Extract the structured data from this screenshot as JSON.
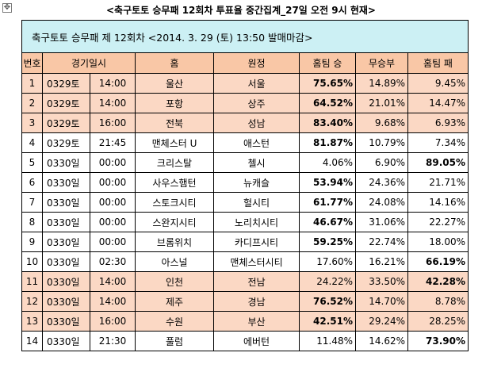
{
  "title": "<축구토토 승무패 12회차 투표율 중간집계_27일 오전 9시 현재>",
  "caption": "축구토토 승무패 제 12회차 <2014. 3. 29 (토) 13:50 발매마감>",
  "headers": [
    "번호",
    "경기일시",
    "홈",
    "원정",
    "홈팀 승",
    "무승부",
    "홈팀 패"
  ],
  "rows": [
    {
      "no": "1",
      "date": "0329토",
      "time": "14:00",
      "home": "울산",
      "away": "서울",
      "win": "75.65%",
      "draw": "14.89%",
      "lose": "9.45%"
    },
    {
      "no": "2",
      "date": "0329토",
      "time": "14:00",
      "home": "포항",
      "away": "상주",
      "win": "64.52%",
      "draw": "21.01%",
      "lose": "14.47%"
    },
    {
      "no": "3",
      "date": "0329토",
      "time": "16:00",
      "home": "전북",
      "away": "성남",
      "win": "83.40%",
      "draw": "9.68%",
      "lose": "6.93%"
    },
    {
      "no": "4",
      "date": "0329토",
      "time": "21:45",
      "home": "맨체스터 U",
      "away": "애스턴",
      "win": "81.87%",
      "draw": "10.79%",
      "lose": "7.34%"
    },
    {
      "no": "5",
      "date": "0330일",
      "time": "00:00",
      "home": "크리스탈",
      "away": "첼시",
      "win": "4.06%",
      "draw": "6.90%",
      "lose": "89.05%"
    },
    {
      "no": "6",
      "date": "0330일",
      "time": "00:00",
      "home": "사우스햄턴",
      "away": "뉴캐슬",
      "win": "53.94%",
      "draw": "24.36%",
      "lose": "21.71%"
    },
    {
      "no": "7",
      "date": "0330일",
      "time": "00:00",
      "home": "스토크시티",
      "away": "헐시티",
      "win": "61.77%",
      "draw": "24.08%",
      "lose": "14.16%"
    },
    {
      "no": "8",
      "date": "0330일",
      "time": "00:00",
      "home": "스완지시티",
      "away": "노리치시티",
      "win": "46.67%",
      "draw": "31.06%",
      "lose": "22.27%"
    },
    {
      "no": "9",
      "date": "0330일",
      "time": "00:00",
      "home": "브롬위치",
      "away": "카디프시티",
      "win": "59.25%",
      "draw": "22.74%",
      "lose": "18.00%"
    },
    {
      "no": "10",
      "date": "0330일",
      "time": "02:30",
      "home": "아스널",
      "away": "맨체스터시티",
      "win": "17.60%",
      "draw": "16.21%",
      "lose": "66.19%"
    },
    {
      "no": "11",
      "date": "0330일",
      "time": "14:00",
      "home": "인천",
      "away": "전남",
      "win": "24.22%",
      "draw": "33.50%",
      "lose": "42.28%"
    },
    {
      "no": "12",
      "date": "0330일",
      "time": "14:00",
      "home": "제주",
      "away": "경남",
      "win": "76.52%",
      "draw": "14.70%",
      "lose": "8.78%"
    },
    {
      "no": "13",
      "date": "0330일",
      "time": "16:00",
      "home": "수원",
      "away": "부산",
      "win": "42.51%",
      "draw": "29.24%",
      "lose": "28.25%"
    },
    {
      "no": "14",
      "date": "0330일",
      "time": "21:30",
      "home": "풀럼",
      "away": "에버턴",
      "win": "11.48%",
      "draw": "14.62%",
      "lose": "73.90%"
    }
  ],
  "highlight_rows": [
    0,
    1,
    2,
    10,
    11,
    12
  ],
  "bold_cells": {
    "0": "win",
    "1": "win",
    "2": "win",
    "3": "win",
    "4": "lose",
    "5": "win",
    "6": "win",
    "7": "win",
    "8": "win",
    "9": "lose",
    "10": "lose",
    "11": "win",
    "12": "win",
    "13": "lose"
  },
  "colors": {
    "caption_bg": "#ccf0f4",
    "header_bg": "#f9c7a6",
    "highlight_bg": "#fbd8c4"
  },
  "icons": {
    "table_anchor": "move-handle-icon"
  }
}
